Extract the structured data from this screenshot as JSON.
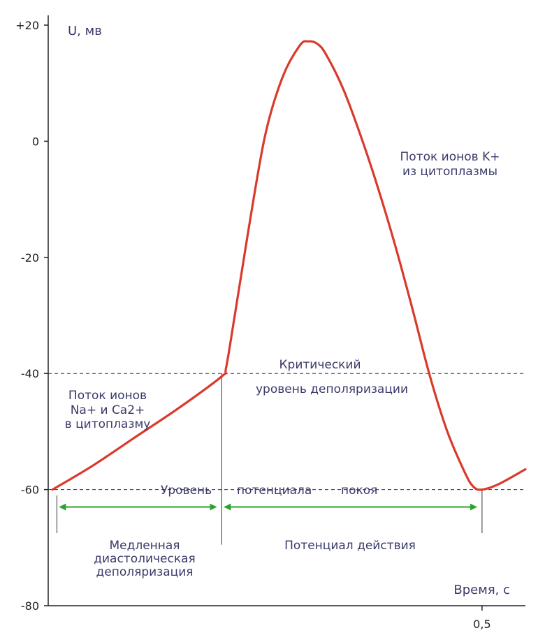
{
  "chart_data": {
    "type": "line",
    "ylabel": "U, мв",
    "xlabel": "Время, с",
    "xlim": [
      0,
      0.55
    ],
    "ylim": [
      -80,
      20
    ],
    "y_ticks": [
      {
        "value": 20,
        "label": "+20"
      },
      {
        "value": 0,
        "label": "0"
      },
      {
        "value": -20,
        "label": "-20"
      },
      {
        "value": -40,
        "label": "-40"
      },
      {
        "value": -60,
        "label": "-60"
      },
      {
        "value": -80,
        "label": "-80"
      }
    ],
    "x_ticks": [
      {
        "value": 0.5,
        "label": "0,5"
      }
    ],
    "grid": false,
    "series": [
      {
        "name": "",
        "color": "#d93a2b",
        "x": [
          0.005,
          0.05,
          0.1,
          0.15,
          0.2,
          0.205,
          0.215,
          0.23,
          0.25,
          0.27,
          0.29,
          0.3,
          0.31,
          0.32,
          0.34,
          0.36,
          0.38,
          0.4,
          0.42,
          0.44,
          0.46,
          0.48,
          0.49,
          0.5,
          0.52,
          0.55
        ],
        "y": [
          -60,
          -56,
          -51,
          -46,
          -40.5,
          -39,
          -30,
          -16,
          1,
          11,
          16.5,
          17.2,
          16.8,
          15,
          9,
          1,
          -8,
          -18,
          -29,
          -40.5,
          -50,
          -57,
          -59.5,
          -60,
          -59,
          -56.5
        ]
      }
    ],
    "reference_lines": [
      {
        "value": -40,
        "label_line1": "Критический",
        "label_line2": "уровень деполяризации",
        "style": "dashed"
      },
      {
        "value": -60,
        "label_parts": [
          "Уровень",
          "потенциала",
          "покоя"
        ],
        "style": "dashed"
      }
    ],
    "vertical_markers": [
      0.01,
      0.2,
      0.5
    ],
    "ranges": [
      {
        "from": 0.01,
        "to": 0.2,
        "label_lines": [
          "Медленная",
          "диастолическая",
          "деполяризация"
        ]
      },
      {
        "from": 0.2,
        "to": 0.5,
        "label_lines": [
          "Потенциал действия"
        ]
      }
    ],
    "range_arrow_color": "#2aa52a",
    "annotations": [
      {
        "lines": [
          "Поток ионов",
          "Na+ и Ca2+",
          "в цитоплазму"
        ],
        "anchor": "left-middle"
      },
      {
        "lines": [
          "Поток ионов K+",
          "из цитоплазмы"
        ],
        "anchor": "right-upper"
      }
    ]
  }
}
